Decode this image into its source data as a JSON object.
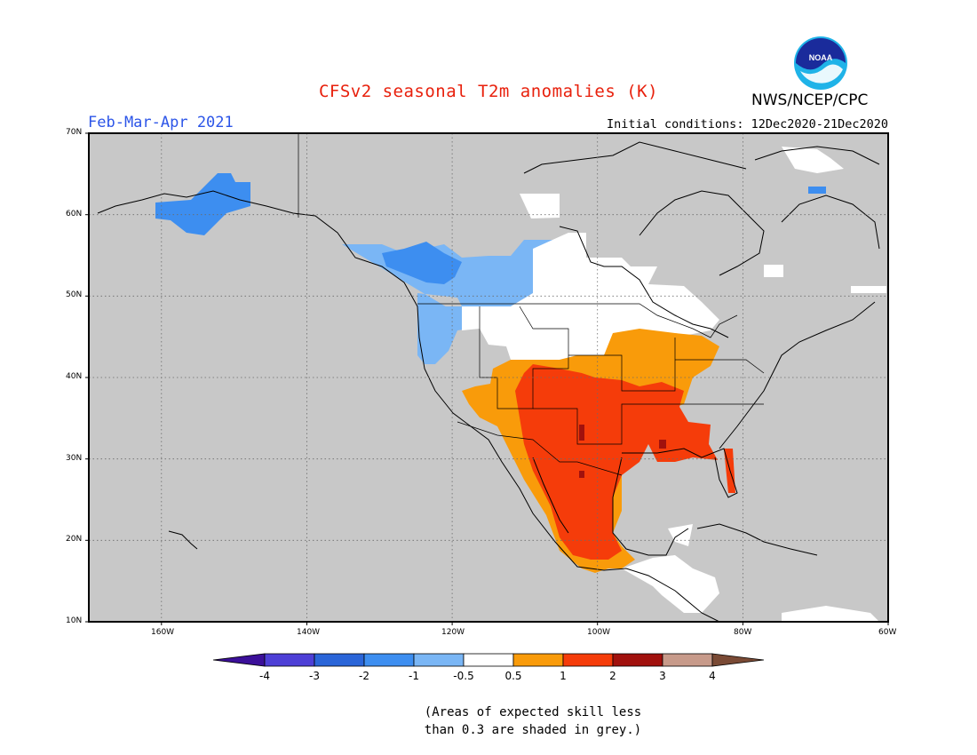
{
  "header": {
    "title": "CFSv2 seasonal T2m anomalies (K)",
    "period": "Feb-Mar-Apr 2021",
    "initial_conditions": "Initial conditions: 12Dec2020-21Dec2020",
    "agency": "NWS/NCEP/CPC",
    "logo_text": "NOAA"
  },
  "map": {
    "lat_labels": [
      "70N",
      "60N",
      "50N",
      "40N",
      "30N",
      "20N",
      "10N"
    ],
    "lon_labels": [
      "160W",
      "140W",
      "120W",
      "100W",
      "80W",
      "60W"
    ],
    "land_color": "#c8c8c8",
    "coast_color": "#000000"
  },
  "colorbar": {
    "tick_labels": [
      "-4",
      "-3",
      "-2",
      "-1",
      "-0.5",
      "0.5",
      "1",
      "2",
      "3",
      "4"
    ],
    "colors": [
      "#3b0f99",
      "#4d3fd6",
      "#2a65d8",
      "#3d8ef0",
      "#7ab6f5",
      "#ffffff",
      "#f99b0a",
      "#f53c0a",
      "#a1110d",
      "#c79a8a",
      "#7a4a35"
    ]
  },
  "footnote": {
    "line1": "(Areas of expected skill less",
    "line2": "than 0.3 are shaded in grey.)"
  }
}
